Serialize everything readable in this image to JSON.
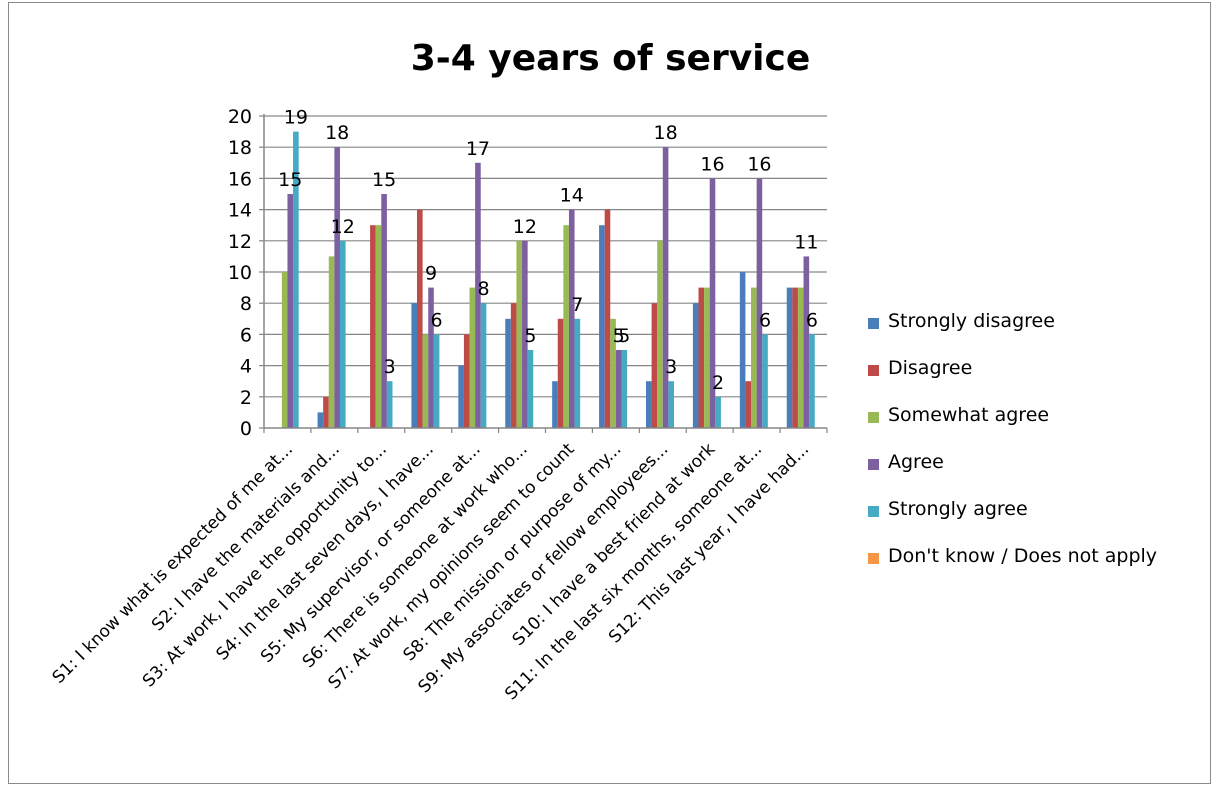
{
  "chart_data": {
    "type": "bar",
    "title": "3-4 years of service",
    "xlabel": "",
    "ylabel": "",
    "ylim": [
      0,
      20
    ],
    "yticks": [
      0,
      2,
      4,
      6,
      8,
      10,
      12,
      14,
      16,
      18,
      20
    ],
    "grid": true,
    "legend_position": "right",
    "categories": [
      "S1: I know what is expected of me at...",
      "S2: I have the materials and...",
      "S3: At work, I have the opportunity to...",
      "S4: In the last seven days, I have...",
      "S5: My supervisor, or someone at...",
      "S6: There is someone at work who...",
      "S7: At work, my opinions seem to count",
      "S8: The mission or purpose of my...",
      "S9: My associates or fellow employees...",
      "S10: I have a best friend at work",
      "S11: In the last six months, someone at...",
      "S12: This last year, I have had..."
    ],
    "series": [
      {
        "name": "Strongly disagree",
        "color": "#4a7ebb",
        "values": [
          0,
          1,
          0,
          8,
          4,
          7,
          3,
          13,
          3,
          8,
          10,
          9
        ]
      },
      {
        "name": "Disagree",
        "color": "#be4b48",
        "values": [
          0,
          2,
          13,
          14,
          6,
          8,
          7,
          14,
          8,
          9,
          3,
          9
        ]
      },
      {
        "name": "Somewhat agree",
        "color": "#98b954",
        "values": [
          10,
          11,
          13,
          6,
          9,
          12,
          13,
          7,
          12,
          9,
          9,
          9
        ]
      },
      {
        "name": "Agree",
        "color": "#7d60a0",
        "values": [
          15,
          18,
          15,
          9,
          17,
          12,
          14,
          5,
          18,
          16,
          16,
          11
        ]
      },
      {
        "name": "Strongly agree",
        "color": "#46aac5",
        "values": [
          19,
          12,
          3,
          6,
          8,
          5,
          7,
          5,
          3,
          2,
          6,
          6
        ]
      },
      {
        "name": "Don't know / Does not apply",
        "color": "#f79646",
        "values": [
          0,
          0,
          0,
          0,
          0,
          0,
          0,
          0,
          0,
          0,
          0,
          0
        ]
      }
    ],
    "data_labels": [
      {
        "category": 0,
        "series": 3,
        "text": "15"
      },
      {
        "category": 0,
        "series": 4,
        "text": "19"
      },
      {
        "category": 1,
        "series": 3,
        "text": "18"
      },
      {
        "category": 1,
        "series": 4,
        "text": "12"
      },
      {
        "category": 2,
        "series": 3,
        "text": "15"
      },
      {
        "category": 2,
        "series": 4,
        "text": "3"
      },
      {
        "category": 3,
        "series": 3,
        "text": "9"
      },
      {
        "category": 3,
        "series": 4,
        "text": "6"
      },
      {
        "category": 4,
        "series": 3,
        "text": "17"
      },
      {
        "category": 4,
        "series": 4,
        "text": "8"
      },
      {
        "category": 5,
        "series": 3,
        "text": "12"
      },
      {
        "category": 5,
        "series": 4,
        "text": "5"
      },
      {
        "category": 6,
        "series": 3,
        "text": "14"
      },
      {
        "category": 6,
        "series": 4,
        "text": "7"
      },
      {
        "category": 7,
        "series": 3,
        "text": "5"
      },
      {
        "category": 7,
        "series": 4,
        "text": "5"
      },
      {
        "category": 8,
        "series": 3,
        "text": "18"
      },
      {
        "category": 8,
        "series": 4,
        "text": "3"
      },
      {
        "category": 9,
        "series": 3,
        "text": "16"
      },
      {
        "category": 9,
        "series": 4,
        "text": "2"
      },
      {
        "category": 10,
        "series": 3,
        "text": "16"
      },
      {
        "category": 10,
        "series": 4,
        "text": "6"
      },
      {
        "category": 11,
        "series": 3,
        "text": "11"
      },
      {
        "category": 11,
        "series": 4,
        "text": "6"
      }
    ]
  }
}
